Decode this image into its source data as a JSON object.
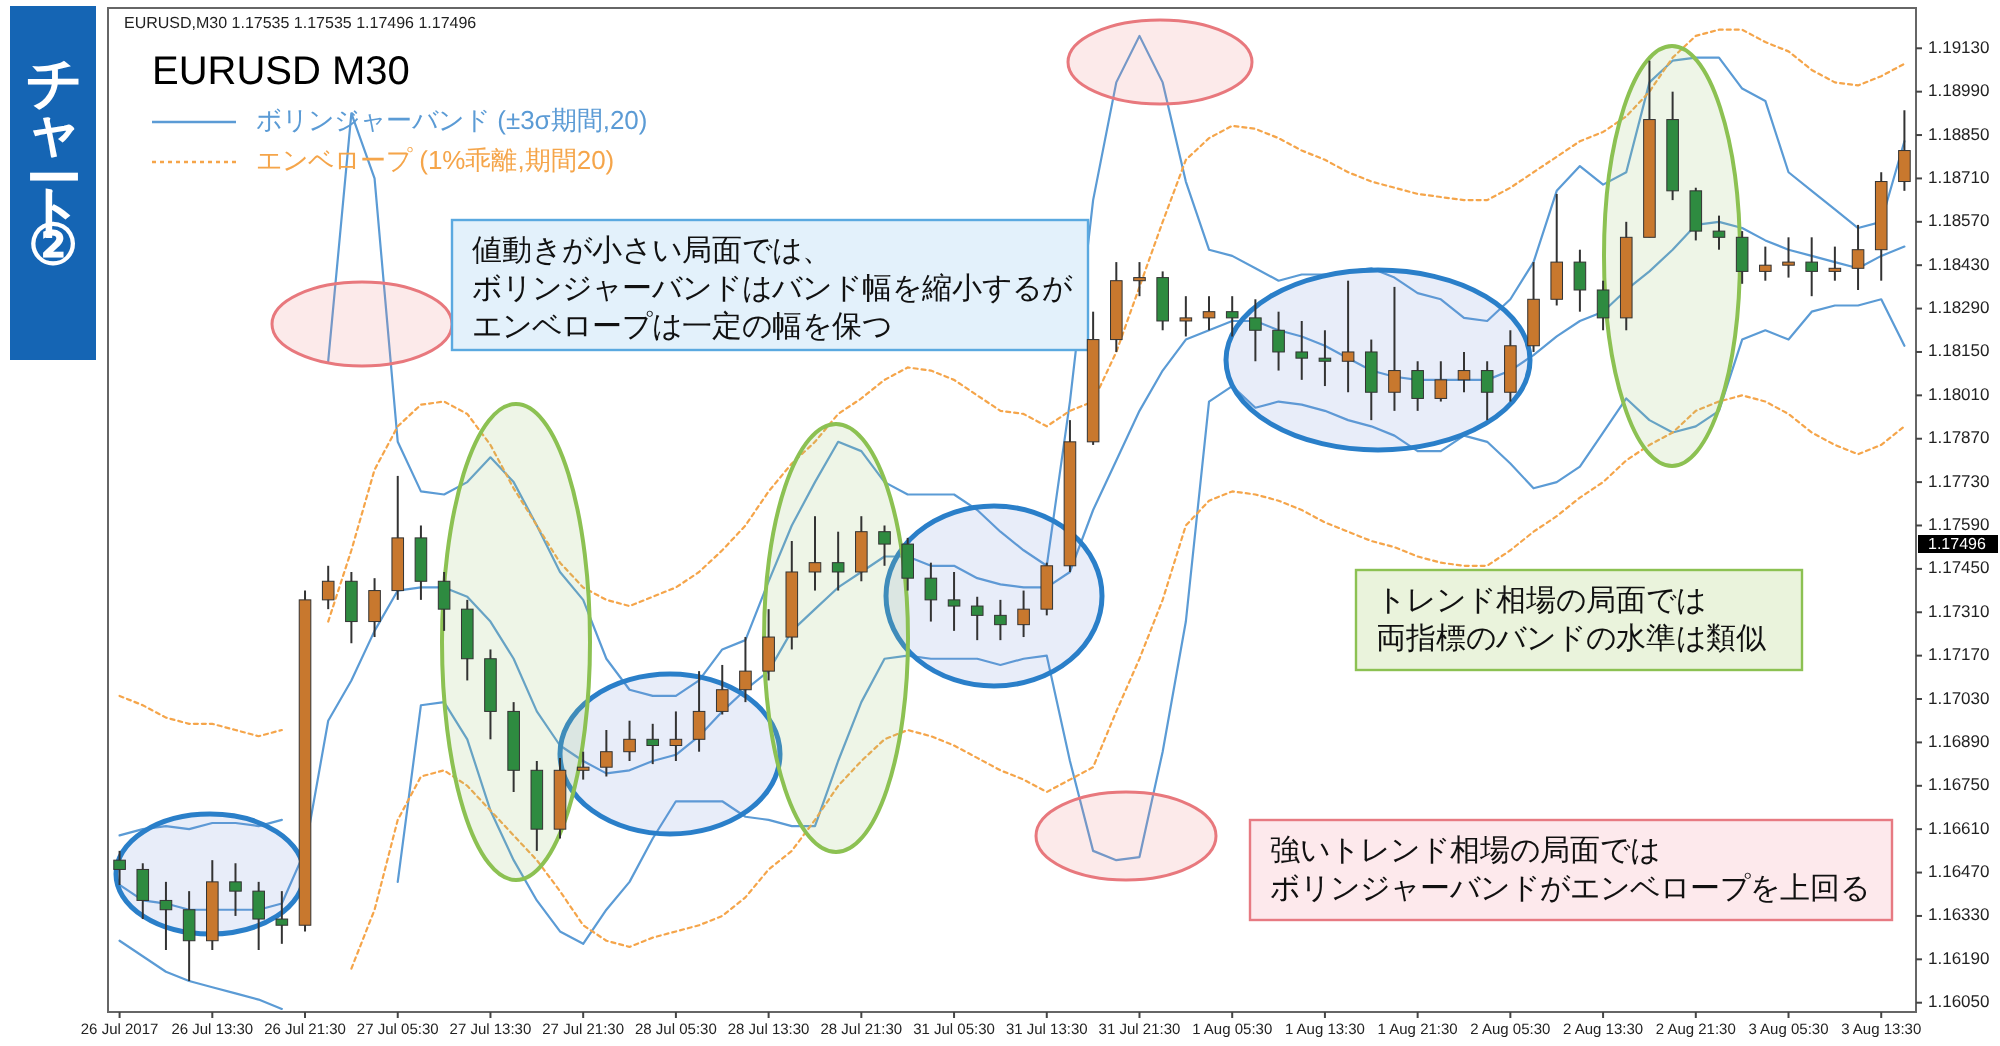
{
  "chart_data": {
    "type": "candlestick",
    "title": "チャート②",
    "subtitle": "EURUSD M30",
    "annotations": [
      "EURUSD,M30  1.17535 1.17535 1.17496 1.17496",
      "値動きが小さい局面では、",
      "ボリンジャーバンドはバンド幅を縮小するが",
      "エンベロープは一定の幅を保つ",
      "トレンド相場の局面では",
      "両指標のバンドの水準は類似",
      "強いトレンド相場の局面では",
      "ボリンジャーバンドがエンベロープを上回る",
      "1.17496"
    ],
    "categories": [
      "26 Jul 2017",
      null,
      null,
      null,
      "26 Jul 13:30",
      null,
      null,
      null,
      "26 Jul 21:30",
      null,
      null,
      null,
      "27 Jul 05:30",
      null,
      null,
      null,
      "27 Jul 13:30",
      null,
      null,
      null,
      "27 Jul 21:30",
      null,
      null,
      null,
      "28 Jul 05:30",
      null,
      null,
      null,
      "28 Jul 13:30",
      null,
      null,
      null,
      "28 Jul 21:30",
      null,
      null,
      null,
      "31 Jul 05:30",
      null,
      null,
      null,
      "31 Jul 13:30",
      null,
      null,
      null,
      "31 Jul 21:30",
      null,
      null,
      null,
      "1 Aug 05:30",
      null,
      null,
      null,
      "1 Aug 13:30",
      null,
      null,
      null,
      "1 Aug 21:30",
      null,
      null,
      null,
      "2 Aug 05:30",
      null,
      null,
      null,
      "2 Aug 13:30",
      null,
      null,
      null,
      "2 Aug 21:30",
      null,
      null,
      null,
      "3 Aug 05:30",
      null,
      null,
      null,
      "3 Aug 13:30",
      null
    ],
    "ohlc": [
      [
        1.1651,
        1.1654,
        1.1643,
        1.1648
      ],
      [
        1.1648,
        1.165,
        1.1632,
        1.1638
      ],
      [
        1.1638,
        1.1644,
        1.1622,
        1.1635
      ],
      [
        1.1635,
        1.1641,
        1.1612,
        1.1625
      ],
      [
        1.1625,
        1.1651,
        1.1622,
        1.1644
      ],
      [
        1.1644,
        1.165,
        1.1633,
        1.1641
      ],
      [
        1.1641,
        1.1644,
        1.1622,
        1.1632
      ],
      [
        1.1632,
        1.1641,
        1.1624,
        1.163
      ],
      [
        1.163,
        1.1738,
        1.1628,
        1.1735
      ],
      [
        1.1735,
        1.1746,
        1.1732,
        1.1741
      ],
      [
        1.1741,
        1.1744,
        1.1721,
        1.1728
      ],
      [
        1.1728,
        1.1742,
        1.1723,
        1.1738
      ],
      [
        1.1738,
        1.1775,
        1.1735,
        1.1755
      ],
      [
        1.1755,
        1.1759,
        1.1735,
        1.1741
      ],
      [
        1.1741,
        1.1744,
        1.1725,
        1.1732
      ],
      [
        1.1732,
        1.1735,
        1.1709,
        1.1716
      ],
      [
        1.1716,
        1.1719,
        1.169,
        1.1699
      ],
      [
        1.1699,
        1.1702,
        1.1673,
        1.168
      ],
      [
        1.168,
        1.1683,
        1.1654,
        1.1661
      ],
      [
        1.1661,
        1.1684,
        1.1658,
        1.168
      ],
      [
        1.168,
        1.1686,
        1.1677,
        1.1681
      ],
      [
        1.1681,
        1.1693,
        1.1678,
        1.1686
      ],
      [
        1.1686,
        1.1696,
        1.1683,
        1.169
      ],
      [
        1.169,
        1.1695,
        1.1682,
        1.1688
      ],
      [
        1.1688,
        1.1699,
        1.1683,
        1.169
      ],
      [
        1.169,
        1.1712,
        1.1686,
        1.1699
      ],
      [
        1.1699,
        1.1714,
        1.1698,
        1.1706
      ],
      [
        1.1706,
        1.1723,
        1.1702,
        1.1712
      ],
      [
        1.1712,
        1.1732,
        1.1709,
        1.1723
      ],
      [
        1.1723,
        1.1754,
        1.1719,
        1.1744
      ],
      [
        1.1744,
        1.1762,
        1.1738,
        1.1747
      ],
      [
        1.1747,
        1.1757,
        1.1738,
        1.1744
      ],
      [
        1.1744,
        1.1762,
        1.1741,
        1.1757
      ],
      [
        1.1757,
        1.1759,
        1.1746,
        1.1753
      ],
      [
        1.1753,
        1.1755,
        1.1738,
        1.1742
      ],
      [
        1.1742,
        1.1747,
        1.1728,
        1.1735
      ],
      [
        1.1735,
        1.1744,
        1.1725,
        1.1733
      ],
      [
        1.1733,
        1.1736,
        1.1722,
        1.173
      ],
      [
        1.173,
        1.1735,
        1.1722,
        1.1727
      ],
      [
        1.1727,
        1.1738,
        1.1723,
        1.1732
      ],
      [
        1.1732,
        1.1747,
        1.173,
        1.1746
      ],
      [
        1.1746,
        1.1793,
        1.1744,
        1.1786
      ],
      [
        1.1786,
        1.1828,
        1.1785,
        1.1819
      ],
      [
        1.1819,
        1.1844,
        1.1815,
        1.1838
      ],
      [
        1.1838,
        1.1844,
        1.1833,
        1.1839
      ],
      [
        1.1839,
        1.1841,
        1.1822,
        1.1825
      ],
      [
        1.1825,
        1.1833,
        1.182,
        1.1826
      ],
      [
        1.1826,
        1.1833,
        1.1822,
        1.1828
      ],
      [
        1.1828,
        1.1833,
        1.182,
        1.1826
      ],
      [
        1.1826,
        1.1832,
        1.1812,
        1.1822
      ],
      [
        1.1822,
        1.1828,
        1.1809,
        1.1815
      ],
      [
        1.1815,
        1.1825,
        1.1806,
        1.1813
      ],
      [
        1.1813,
        1.1822,
        1.1804,
        1.1812
      ],
      [
        1.1812,
        1.1838,
        1.1802,
        1.1815
      ],
      [
        1.1815,
        1.1819,
        1.1793,
        1.1802
      ],
      [
        1.1802,
        1.1836,
        1.1796,
        1.1809
      ],
      [
        1.1809,
        1.1812,
        1.1796,
        1.18
      ],
      [
        1.18,
        1.1812,
        1.1799,
        1.1806
      ],
      [
        1.1806,
        1.1815,
        1.1802,
        1.1809
      ],
      [
        1.1809,
        1.1812,
        1.1793,
        1.1802
      ],
      [
        1.1802,
        1.1822,
        1.1799,
        1.1817
      ],
      [
        1.1817,
        1.1844,
        1.1815,
        1.1832
      ],
      [
        1.1832,
        1.1866,
        1.183,
        1.1844
      ],
      [
        1.1844,
        1.1848,
        1.1828,
        1.1835
      ],
      [
        1.1835,
        1.1838,
        1.1822,
        1.1826
      ],
      [
        1.1826,
        1.1857,
        1.1822,
        1.1852
      ],
      [
        1.1852,
        1.1909,
        1.1852,
        1.189
      ],
      [
        1.189,
        1.1899,
        1.1864,
        1.1867
      ],
      [
        1.1867,
        1.1868,
        1.1851,
        1.1854
      ],
      [
        1.1854,
        1.1859,
        1.1848,
        1.1852
      ],
      [
        1.1852,
        1.1854,
        1.1837,
        1.1841
      ],
      [
        1.1841,
        1.1849,
        1.1838,
        1.1843
      ],
      [
        1.1843,
        1.1852,
        1.1839,
        1.1844
      ],
      [
        1.1844,
        1.1852,
        1.1833,
        1.1841
      ],
      [
        1.1841,
        1.1849,
        1.1838,
        1.1842
      ],
      [
        1.1842,
        1.1856,
        1.1835,
        1.1848
      ],
      [
        1.1848,
        1.1873,
        1.1838,
        1.187
      ],
      [
        1.187,
        1.1893,
        1.1867,
        1.188
      ]
    ],
    "colors": [
      "#2e8b40",
      "#2e8b40",
      "#2e8b40",
      "#2e8b40",
      "#c8782e",
      "#2e8b40",
      "#2e8b40",
      "#2e8b40",
      "#c8782e",
      "#c8782e",
      "#2e8b40",
      "#c8782e",
      "#c8782e",
      "#2e8b40",
      "#2e8b40",
      "#2e8b40",
      "#2e8b40",
      "#2e8b40",
      "#2e8b40",
      "#c8782e",
      "#c8782e",
      "#c8782e",
      "#c8782e",
      "#2e8b40",
      "#c8782e",
      "#c8782e",
      "#c8782e",
      "#c8782e",
      "#c8782e",
      "#c8782e",
      "#c8782e",
      "#2e8b40",
      "#c8782e",
      "#2e8b40",
      "#2e8b40",
      "#2e8b40",
      "#2e8b40",
      "#2e8b40",
      "#2e8b40",
      "#c8782e",
      "#c8782e",
      "#c8782e",
      "#c8782e",
      "#c8782e",
      "#c8782e",
      "#2e8b40",
      "#c8782e",
      "#c8782e",
      "#2e8b40",
      "#2e8b40",
      "#2e8b40",
      "#2e8b40",
      "#2e8b40",
      "#c8782e",
      "#2e8b40",
      "#c8782e",
      "#2e8b40",
      "#c8782e",
      "#c8782e",
      "#2e8b40",
      "#c8782e",
      "#c8782e",
      "#c8782e",
      "#2e8b40",
      "#2e8b40",
      "#c8782e",
      "#c8782e",
      "#2e8b40",
      "#2e8b40",
      "#2e8b40",
      "#2e8b40",
      "#c8782e",
      "#c8782e",
      "#2e8b40",
      "#c8782e",
      "#c8782e",
      "#c8782e",
      "#c8782e"
    ],
    "series": [
      {
        "name": "ボリンジャーバンド (±3σ期間,20)",
        "type": "line",
        "color": "#5b9bd5",
        "values": [
          1.1659,
          1.1661,
          1.1662,
          1.1661,
          1.1663,
          1.1663,
          1.1662,
          1.1664,
          null,
          1.1812,
          1.1892,
          1.1871,
          1.1786,
          1.177,
          1.1769,
          1.1773,
          1.1781,
          1.1773,
          1.1759,
          1.1744,
          1.1735,
          1.1716,
          1.1706,
          1.1704,
          1.1704,
          1.1709,
          1.1719,
          1.1722,
          1.1741,
          1.1759,
          1.1773,
          1.1786,
          1.1783,
          1.1773,
          1.1769,
          1.1769,
          1.1769,
          1.1764,
          1.1757,
          1.1751,
          1.1746,
          1.1799,
          1.1864,
          1.1902,
          1.1917,
          1.1902,
          1.187,
          1.1848,
          1.1846,
          1.1842,
          1.1838,
          1.184,
          1.184,
          1.1841,
          1.1842,
          1.1839,
          1.1834,
          1.1832,
          1.1826,
          1.1825,
          1.1832,
          1.1844,
          1.1867,
          1.1875,
          1.1869,
          1.1873,
          1.1902,
          1.1909,
          1.191,
          1.191,
          1.19,
          1.1896,
          1.1873,
          1.1867,
          1.1861,
          1.1855,
          1.1857,
          1.1883
        ]
      },
      {
        "type": "line",
        "color": "#5b9bd5",
        "values": [
          1.1643,
          1.1638,
          1.1637,
          1.1635,
          1.1635,
          1.1635,
          1.1635,
          1.1637,
          1.1654,
          1.1696,
          1.1709,
          1.1725,
          1.1738,
          1.1739,
          1.1739,
          1.1736,
          1.1728,
          1.1716,
          1.1699,
          1.1688,
          1.1683,
          1.1679,
          1.168,
          1.1683,
          1.1685,
          1.1691,
          1.1699,
          1.1706,
          1.1712,
          1.1725,
          1.1732,
          1.1739,
          1.1744,
          1.1749,
          1.1749,
          1.1746,
          1.1746,
          1.1742,
          1.174,
          1.1739,
          1.1739,
          1.1744,
          1.1764,
          1.178,
          1.1796,
          1.1809,
          1.1819,
          1.1822,
          1.1825,
          1.1825,
          1.1822,
          1.182,
          1.1817,
          1.1813,
          1.1809,
          1.1807,
          1.1806,
          1.1806,
          1.1806,
          1.1806,
          1.1809,
          1.1814,
          1.182,
          1.1825,
          1.1828,
          1.1835,
          1.1841,
          1.1848,
          1.1856,
          1.1857,
          1.1855,
          1.1851,
          1.1848,
          1.1846,
          1.1844,
          1.1842,
          1.1846,
          1.1849
        ]
      },
      {
        "type": "line",
        "color": "#5b9bd5",
        "values": [
          1.1625,
          1.162,
          1.1615,
          1.1612,
          1.161,
          1.1608,
          1.1606,
          1.1603,
          null,
          null,
          null,
          null,
          1.1644,
          1.1701,
          1.1702,
          1.169,
          1.1667,
          1.1651,
          1.1638,
          1.1628,
          1.1624,
          1.1635,
          1.1644,
          1.1658,
          1.167,
          1.167,
          1.167,
          1.1665,
          1.1664,
          1.1662,
          1.1662,
          1.1683,
          1.1702,
          1.1716,
          1.1717,
          1.1716,
          1.1716,
          1.1716,
          1.1714,
          1.1716,
          1.1717,
          1.1683,
          1.1654,
          1.1651,
          1.1652,
          1.1686,
          1.1728,
          1.1799,
          1.1804,
          1.1797,
          1.1799,
          1.1798,
          1.1796,
          1.1793,
          1.1791,
          1.1788,
          1.1783,
          1.1783,
          1.1788,
          1.1786,
          1.1779,
          1.1771,
          1.1773,
          1.1778,
          1.1789,
          1.18,
          1.1793,
          1.1789,
          1.1791,
          1.1796,
          1.1819,
          1.1822,
          1.1819,
          1.1828,
          1.183,
          1.183,
          1.1832,
          1.1817
        ]
      },
      {
        "name": "エンベロープ (1%乖離,期間20)",
        "type": "line",
        "color": "#f5a54a",
        "line_style": "dotted",
        "values": [
          1.1704,
          1.1701,
          1.1697,
          1.1695,
          1.1695,
          1.1693,
          1.1691,
          1.1693,
          null,
          1.1728,
          1.1751,
          1.1777,
          1.1791,
          1.1798,
          1.1799,
          1.1795,
          1.1785,
          1.1771,
          1.1759,
          1.1747,
          1.1739,
          1.1735,
          1.1733,
          1.1736,
          1.1739,
          1.1744,
          1.1751,
          1.1759,
          1.177,
          1.1779,
          1.1786,
          1.1795,
          1.18,
          1.1806,
          1.181,
          1.1809,
          1.1806,
          1.1801,
          1.1796,
          1.1795,
          1.1791,
          1.1796,
          1.1799,
          1.1815,
          1.1836,
          1.1857,
          1.1877,
          1.1884,
          1.1888,
          1.1887,
          1.1884,
          1.188,
          1.1877,
          1.1873,
          1.187,
          1.1868,
          1.1866,
          1.1865,
          1.1864,
          1.1864,
          1.1868,
          1.1873,
          1.1878,
          1.1883,
          1.1886,
          1.1891,
          1.1899,
          1.191,
          1.1917,
          1.1919,
          1.1919,
          1.1915,
          1.1912,
          1.1906,
          1.1902,
          1.1901,
          1.1904,
          1.1908
        ]
      },
      {
        "type": "line",
        "color": "#f5a54a",
        "line_style": "dotted",
        "values": [
          null,
          null,
          null,
          null,
          null,
          null,
          null,
          null,
          null,
          null,
          1.1616,
          1.1635,
          1.1664,
          1.1678,
          1.168,
          1.1675,
          1.1667,
          1.1659,
          1.1651,
          1.1641,
          1.163,
          1.1625,
          1.1623,
          1.1626,
          1.1628,
          1.163,
          1.1633,
          1.1639,
          1.1648,
          1.1654,
          1.1664,
          1.1675,
          1.1683,
          1.169,
          1.1693,
          1.1691,
          1.1688,
          1.1684,
          1.168,
          1.1677,
          1.1673,
          1.1677,
          1.1681,
          1.1699,
          1.1716,
          1.1735,
          1.1759,
          1.1767,
          1.177,
          1.1769,
          1.1767,
          1.1764,
          1.176,
          1.1757,
          1.1754,
          1.1752,
          1.1749,
          1.1747,
          1.1746,
          1.1746,
          1.1751,
          1.1757,
          1.1762,
          1.1768,
          1.1773,
          1.178,
          1.1785,
          1.1789,
          1.1796,
          1.1799,
          1.1801,
          1.1799,
          1.1795,
          1.1789,
          1.1785,
          1.1782,
          1.1785,
          1.1791
        ]
      }
    ],
    "ylim": [
      1.1602,
      1.1926
    ],
    "yticks": [
      {
        "value": 1.1913,
        "label": "1.19130"
      },
      {
        "value": 1.1899,
        "label": "1.18990"
      },
      {
        "value": 1.1885,
        "label": "1.18850"
      },
      {
        "value": 1.1871,
        "label": "1.18710"
      },
      {
        "value": 1.1857,
        "label": "1.18570"
      },
      {
        "value": 1.1843,
        "label": "1.18430"
      },
      {
        "value": 1.1829,
        "label": "1.18290"
      },
      {
        "value": 1.1815,
        "label": "1.18150"
      },
      {
        "value": 1.1801,
        "label": "1.18010"
      },
      {
        "value": 1.1787,
        "label": "1.17870"
      },
      {
        "value": 1.1773,
        "label": "1.17730"
      },
      {
        "value": 1.1759,
        "label": "1.17590"
      },
      {
        "value": 1.1745,
        "label": "1.17450"
      },
      {
        "value": 1.1731,
        "label": "1.17310"
      },
      {
        "value": 1.1717,
        "label": "1.17170"
      },
      {
        "value": 1.1703,
        "label": "1.17030"
      },
      {
        "value": 1.1689,
        "label": "1.16890"
      },
      {
        "value": 1.1675,
        "label": "1.16750"
      },
      {
        "value": 1.1661,
        "label": "1.16610"
      },
      {
        "value": 1.1647,
        "label": "1.16470"
      },
      {
        "value": 1.1633,
        "label": "1.16330"
      },
      {
        "value": 1.1619,
        "label": "1.16190"
      },
      {
        "value": 1.1605,
        "label": "1.16050"
      }
    ],
    "legend": "top left"
  }
}
